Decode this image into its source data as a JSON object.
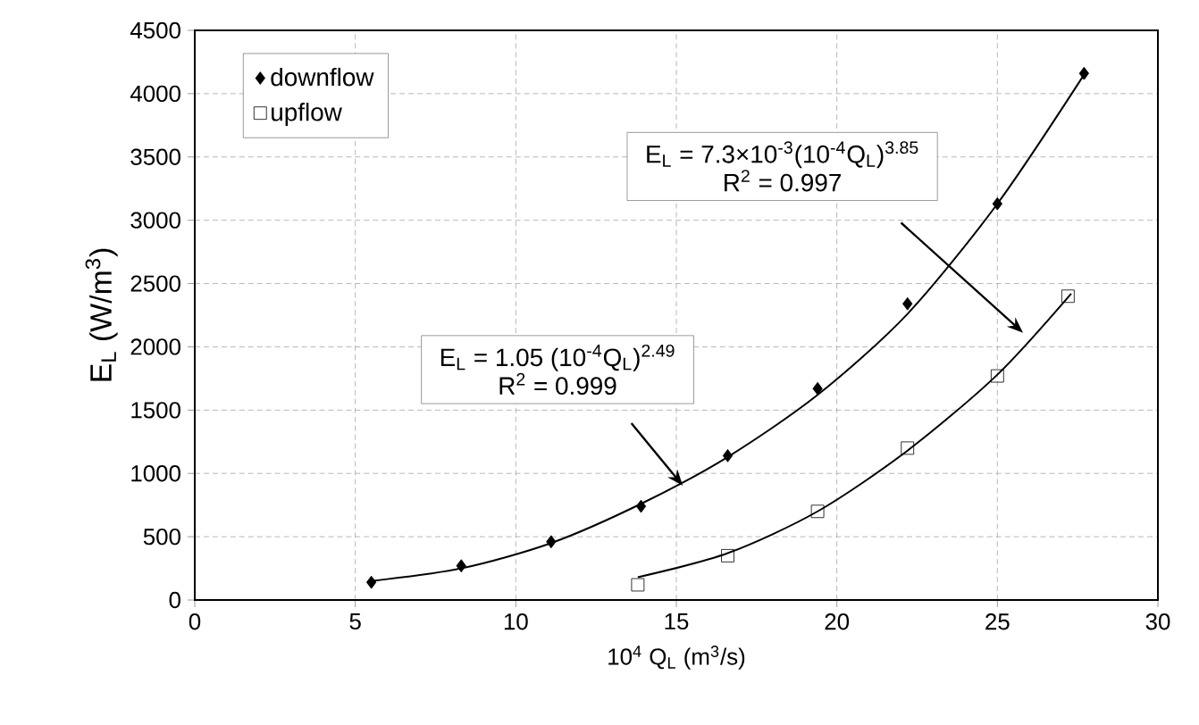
{
  "chart_data": {
    "type": "scatter",
    "xlabel": "10$^{4}$ Q$_{L}$ (m$^{3}$/s)",
    "ylabel": "E$_{L}$ (W/m$^{3}$)",
    "xlim": [
      0,
      30
    ],
    "xticks": [
      0,
      5,
      10,
      15,
      20,
      25,
      30
    ],
    "ylim": [
      0,
      4500
    ],
    "yticks": [
      0,
      500,
      1000,
      1500,
      2000,
      2500,
      3000,
      3500,
      4000,
      4500
    ],
    "grid": true,
    "legend": "top left",
    "series": [
      {
        "name": "downflow",
        "marker": "diamond",
        "color": "#000000",
        "x": [
          5.5,
          8.3,
          11.1,
          13.9,
          16.6,
          19.4,
          22.2,
          25.0,
          27.7
        ],
        "values": [
          140,
          270,
          460,
          740,
          1140,
          1670,
          2340,
          3130,
          4160
        ]
      },
      {
        "name": "upflow",
        "marker": "square",
        "color": "#000000",
        "x": [
          13.8,
          16.6,
          19.4,
          22.2,
          25.0,
          27.2
        ],
        "values": [
          120,
          350,
          700,
          1200,
          1770,
          2400
        ]
      },
      {
        "type": "line",
        "color": "#000000",
        "x": [
          5.5,
          8.3,
          11.1,
          13.9,
          16.6,
          19.4,
          22.2,
          25.0,
          27.7
        ],
        "values": [
          150,
          250,
          450,
          760,
          1130,
          1620,
          2260,
          3130,
          4150
        ]
      },
      {
        "type": "line",
        "color": "#000000",
        "x": [
          13.8,
          16.6,
          19.4,
          22.2,
          25.0,
          27.3
        ],
        "values": [
          180,
          370,
          700,
          1180,
          1780,
          2420
        ]
      }
    ],
    "annotations": [
      "E$_{L}$ = 1.05 (10$^{-4}$Q$_{L}$)$^{2.49}$",
      "R$^{2}$ = 0.999",
      "E$_{L}$ = 7.3×10$^{-3}$(10$^{-4}$Q$_{L}$)$^{3.85}$",
      "R$^{2}$ = 0.997"
    ]
  }
}
